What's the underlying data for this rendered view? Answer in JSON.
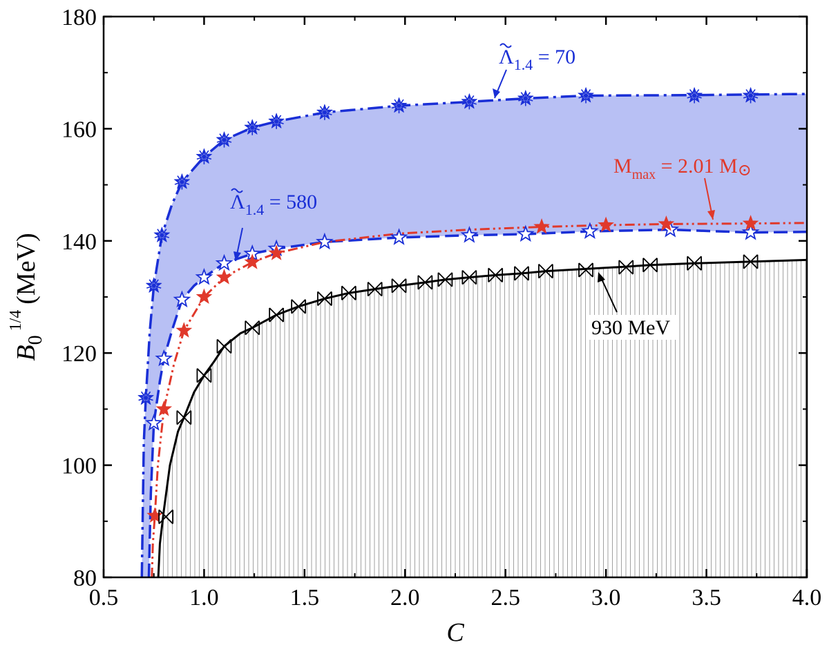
{
  "chart_data": {
    "type": "line",
    "title": "",
    "xlabel": "C",
    "ylabel_main": "B",
    "ylabel_sub": "0",
    "ylabel_sup": "1/4",
    "ylabel_unit": "(MeV)",
    "xlim": [
      0.5,
      4.0
    ],
    "ylim": [
      80,
      180
    ],
    "xticks": [
      "0.5",
      "1.0",
      "1.5",
      "2.0",
      "2.5",
      "3.0",
      "3.5",
      "4.0"
    ],
    "yticks": [
      "80",
      "100",
      "120",
      "140",
      "160",
      "180"
    ],
    "grid": false,
    "colors": {
      "lambda70": "#1a2fd6",
      "lambda580": "#1a2fd6",
      "mmax": "#e0392b",
      "mev930": "#000000",
      "band": "#b8c0f4"
    },
    "annotations": {
      "lambda70": {
        "sym": "Λ",
        "sub": "1.4",
        "rest": " = 70"
      },
      "lambda580": {
        "sym": "Λ",
        "sub": "1.4",
        "rest": " = 580"
      },
      "mmax": {
        "main": "M",
        "sub": "max",
        "rest": " = 2.01 M",
        "sun": "⊙"
      },
      "mev930": {
        "text": "930 MeV"
      }
    },
    "series": [
      {
        "id": "lambda70",
        "marker": "asterisk-star",
        "curve": [
          [
            0.69,
            80
          ],
          [
            0.7,
            104
          ],
          [
            0.71,
            112
          ],
          [
            0.73,
            124
          ],
          [
            0.75,
            132
          ],
          [
            0.79,
            141
          ],
          [
            0.84,
            146.5
          ],
          [
            0.89,
            150.5
          ],
          [
            1.0,
            155
          ],
          [
            1.1,
            158
          ],
          [
            1.24,
            160.2
          ],
          [
            1.36,
            161.3
          ],
          [
            1.6,
            162.9
          ],
          [
            1.97,
            164.1
          ],
          [
            2.32,
            164.8
          ],
          [
            2.6,
            165.4
          ],
          [
            2.9,
            165.9
          ],
          [
            3.44,
            166
          ],
          [
            4.0,
            166.2
          ]
        ],
        "markers": [
          [
            0.71,
            112
          ],
          [
            0.75,
            132
          ],
          [
            0.79,
            141
          ],
          [
            0.89,
            150.5
          ],
          [
            1.0,
            155
          ],
          [
            1.1,
            158
          ],
          [
            1.24,
            160.2
          ],
          [
            1.36,
            161.3
          ],
          [
            1.6,
            162.9
          ],
          [
            1.97,
            164.1
          ],
          [
            2.32,
            164.8
          ],
          [
            2.6,
            165.4
          ],
          [
            2.9,
            165.9
          ],
          [
            3.44,
            165.9
          ],
          [
            3.72,
            165.9
          ]
        ]
      },
      {
        "id": "lambda580",
        "marker": "open-star",
        "curve": [
          [
            0.725,
            80
          ],
          [
            0.735,
            95
          ],
          [
            0.75,
            107.5
          ],
          [
            0.78,
            115
          ],
          [
            0.8,
            119
          ],
          [
            0.84,
            124
          ],
          [
            0.89,
            129.5
          ],
          [
            0.95,
            132
          ],
          [
            1.0,
            133.5
          ],
          [
            1.1,
            136
          ],
          [
            1.24,
            137.7
          ],
          [
            1.36,
            138.6
          ],
          [
            1.6,
            139.8
          ],
          [
            1.97,
            140.6
          ],
          [
            2.32,
            141
          ],
          [
            2.6,
            141.2
          ],
          [
            2.92,
            141.7
          ],
          [
            3.32,
            142
          ],
          [
            3.72,
            141.5
          ],
          [
            4.0,
            141.6
          ]
        ],
        "markers": [
          [
            0.75,
            107.5
          ],
          [
            0.8,
            119
          ],
          [
            0.89,
            129.5
          ],
          [
            1.0,
            133.5
          ],
          [
            1.1,
            136
          ],
          [
            1.24,
            137.7
          ],
          [
            1.36,
            138.6
          ],
          [
            1.6,
            139.8
          ],
          [
            1.97,
            140.6
          ],
          [
            2.32,
            141
          ],
          [
            2.6,
            141.2
          ],
          [
            2.92,
            141.7
          ],
          [
            3.32,
            142
          ],
          [
            3.72,
            141.5
          ]
        ]
      },
      {
        "id": "mmax",
        "marker": "filled-star",
        "curve": [
          [
            0.74,
            80
          ],
          [
            0.745,
            86
          ],
          [
            0.755,
            91
          ],
          [
            0.77,
            100
          ],
          [
            0.8,
            110
          ],
          [
            0.85,
            118
          ],
          [
            0.9,
            124
          ],
          [
            1.0,
            130
          ],
          [
            1.1,
            133.5
          ],
          [
            1.24,
            136.2
          ],
          [
            1.36,
            137.8
          ],
          [
            1.6,
            139.8
          ],
          [
            1.97,
            141.3
          ],
          [
            2.32,
            142
          ],
          [
            2.68,
            142.5
          ],
          [
            3.0,
            142.8
          ],
          [
            3.3,
            143
          ],
          [
            3.72,
            143.1
          ],
          [
            4.0,
            143.2
          ]
        ],
        "markers": [
          [
            0.755,
            91
          ],
          [
            0.8,
            110
          ],
          [
            0.9,
            124
          ],
          [
            1.0,
            130
          ],
          [
            1.1,
            133.5
          ],
          [
            1.24,
            136.2
          ],
          [
            1.36,
            137.8
          ],
          [
            2.68,
            142.5
          ],
          [
            3.0,
            142.8
          ],
          [
            3.3,
            143
          ],
          [
            3.72,
            143.1
          ]
        ]
      },
      {
        "id": "mev930",
        "marker": "boxed-x",
        "curve": [
          [
            0.772,
            80
          ],
          [
            0.78,
            86
          ],
          [
            0.8,
            92
          ],
          [
            0.83,
            100
          ],
          [
            0.87,
            106
          ],
          [
            0.9,
            108.5
          ],
          [
            0.95,
            113
          ],
          [
            1.0,
            116
          ],
          [
            1.05,
            118.5
          ],
          [
            1.1,
            121.2
          ],
          [
            1.18,
            123.5
          ],
          [
            1.24,
            124.5
          ],
          [
            1.36,
            126.8
          ],
          [
            1.47,
            128.3
          ],
          [
            1.6,
            129.7
          ],
          [
            1.72,
            130.7
          ],
          [
            1.85,
            131.4
          ],
          [
            1.97,
            132
          ],
          [
            2.1,
            132.6
          ],
          [
            2.2,
            133.1
          ],
          [
            2.32,
            133.5
          ],
          [
            2.45,
            133.9
          ],
          [
            2.58,
            134.2
          ],
          [
            2.7,
            134.6
          ],
          [
            2.9,
            135
          ],
          [
            3.1,
            135.4
          ],
          [
            3.22,
            135.7
          ],
          [
            3.44,
            136
          ],
          [
            3.72,
            136.3
          ],
          [
            4.0,
            136.6
          ]
        ],
        "markers": [
          [
            0.81,
            90.8
          ],
          [
            0.9,
            108.5
          ],
          [
            1.0,
            116
          ],
          [
            1.1,
            121.2
          ],
          [
            1.24,
            124.5
          ],
          [
            1.36,
            126.8
          ],
          [
            1.47,
            128.3
          ],
          [
            1.6,
            129.7
          ],
          [
            1.72,
            130.7
          ],
          [
            1.85,
            131.4
          ],
          [
            1.97,
            132
          ],
          [
            2.1,
            132.6
          ],
          [
            2.2,
            133.1
          ],
          [
            2.32,
            133.5
          ],
          [
            2.45,
            133.9
          ],
          [
            2.58,
            134.2
          ],
          [
            2.7,
            134.6
          ],
          [
            2.9,
            134.8
          ],
          [
            3.1,
            135.3
          ],
          [
            3.22,
            135.7
          ],
          [
            3.44,
            136
          ],
          [
            3.72,
            136.3
          ]
        ]
      }
    ]
  }
}
